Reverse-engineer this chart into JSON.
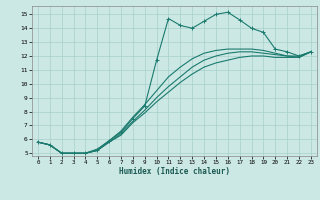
{
  "xlabel": "Humidex (Indice chaleur)",
  "bg_color": "#cce8e4",
  "grid_color": "#a8cfc9",
  "line_color": "#1a7a6e",
  "xlim": [
    -0.5,
    23.5
  ],
  "ylim": [
    4.8,
    15.6
  ],
  "yticks": [
    5,
    6,
    7,
    8,
    9,
    10,
    11,
    12,
    13,
    14,
    15
  ],
  "xticks": [
    0,
    1,
    2,
    3,
    4,
    5,
    6,
    7,
    8,
    9,
    10,
    11,
    12,
    13,
    14,
    15,
    16,
    17,
    18,
    19,
    20,
    21,
    22,
    23
  ],
  "line1_x": [
    0,
    1,
    2,
    3,
    4,
    5,
    6,
    7,
    8,
    9,
    10,
    11,
    12,
    13,
    14,
    15,
    16,
    17,
    18,
    19,
    20,
    21,
    22,
    23
  ],
  "line1_y": [
    5.8,
    5.6,
    5.0,
    5.0,
    5.0,
    5.2,
    5.9,
    6.5,
    7.5,
    8.4,
    11.7,
    14.7,
    14.2,
    14.0,
    14.5,
    15.0,
    15.15,
    14.6,
    14.0,
    13.7,
    12.5,
    12.3,
    12.0,
    12.3
  ],
  "line2_x": [
    0,
    1,
    2,
    3,
    4,
    5,
    6,
    7,
    8,
    9,
    10,
    11,
    12,
    13,
    14,
    15,
    16,
    17,
    18,
    19,
    20,
    21,
    22,
    23
  ],
  "line2_y": [
    5.8,
    5.6,
    5.0,
    5.0,
    5.0,
    5.3,
    5.9,
    6.6,
    7.6,
    8.5,
    9.5,
    10.5,
    11.2,
    11.8,
    12.2,
    12.4,
    12.5,
    12.5,
    12.5,
    12.4,
    12.2,
    12.0,
    12.0,
    12.3
  ],
  "line3_x": [
    0,
    1,
    2,
    3,
    4,
    5,
    6,
    7,
    8,
    9,
    10,
    11,
    12,
    13,
    14,
    15,
    16,
    17,
    18,
    19,
    20,
    21,
    22,
    23
  ],
  "line3_y": [
    5.8,
    5.6,
    5.0,
    5.0,
    5.0,
    5.2,
    5.8,
    6.4,
    7.3,
    8.1,
    9.0,
    9.8,
    10.5,
    11.2,
    11.7,
    12.0,
    12.2,
    12.3,
    12.3,
    12.2,
    12.1,
    12.0,
    11.9,
    12.3
  ],
  "line4_x": [
    0,
    1,
    2,
    3,
    4,
    5,
    6,
    7,
    8,
    9,
    10,
    11,
    12,
    13,
    14,
    15,
    16,
    17,
    18,
    19,
    20,
    21,
    22,
    23
  ],
  "line4_y": [
    5.8,
    5.6,
    5.0,
    5.0,
    5.0,
    5.2,
    5.8,
    6.3,
    7.2,
    7.9,
    8.7,
    9.4,
    10.1,
    10.7,
    11.2,
    11.5,
    11.7,
    11.9,
    12.0,
    12.0,
    11.9,
    11.9,
    11.9,
    12.3
  ]
}
